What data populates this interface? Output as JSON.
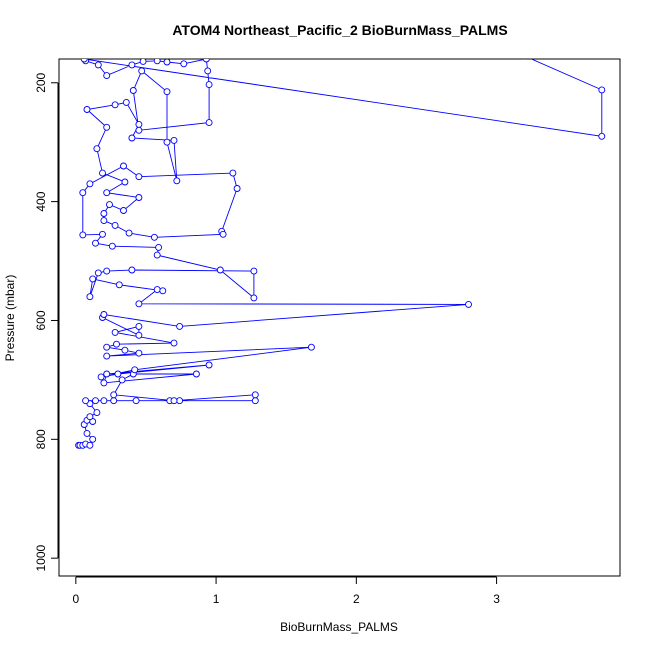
{
  "chart_data": {
    "type": "line",
    "title": "ATOM4 Northeast_Pacific_2 BioBurnMass_PALMS",
    "xlabel": "BioBurnMass_PALMS",
    "ylabel": "Pressure (mbar)",
    "xlim": [
      -0.12,
      3.88
    ],
    "ylim": [
      160,
      1030
    ],
    "y_reversed": true,
    "x_ticks": [
      0,
      1,
      2,
      3
    ],
    "y_ticks": [
      200,
      400,
      600,
      800,
      1000
    ],
    "grid": false,
    "color": "#0000ff",
    "marker": "open-circle",
    "series": [
      {
        "points": [
          [
            0.02,
            810
          ],
          [
            0.03,
            810
          ],
          [
            0.05,
            810
          ],
          [
            0.07,
            808
          ],
          [
            0.1,
            810
          ],
          [
            0.12,
            800
          ],
          [
            0.08,
            790
          ],
          [
            0.06,
            775
          ],
          [
            0.08,
            768
          ],
          [
            0.12,
            770
          ],
          [
            0.1,
            762
          ],
          [
            0.15,
            755
          ],
          [
            0.1,
            740
          ],
          [
            0.07,
            735
          ],
          [
            0.14,
            735
          ],
          [
            0.2,
            735
          ],
          [
            0.27,
            735
          ],
          [
            0.43,
            735
          ],
          [
            0.67,
            735
          ],
          [
            0.74,
            735
          ],
          [
            1.28,
            735
          ],
          [
            1.28,
            725
          ],
          [
            0.7,
            735
          ],
          [
            0.27,
            725
          ],
          [
            0.33,
            700
          ],
          [
            0.41,
            690
          ],
          [
            0.86,
            690
          ],
          [
            0.2,
            705
          ],
          [
            0.22,
            690
          ],
          [
            0.95,
            675
          ],
          [
            0.3,
            690
          ],
          [
            0.18,
            695
          ],
          [
            0.42,
            683
          ],
          [
            1.68,
            645
          ],
          [
            0.22,
            660
          ],
          [
            0.45,
            655
          ],
          [
            0.35,
            650
          ],
          [
            0.22,
            645
          ],
          [
            0.29,
            640
          ],
          [
            0.7,
            638
          ],
          [
            0.28,
            620
          ],
          [
            0.45,
            610
          ],
          [
            0.45,
            625
          ],
          [
            0.19,
            595
          ],
          [
            0.2,
            590
          ],
          [
            0.74,
            610
          ],
          [
            2.8,
            573
          ],
          [
            0.45,
            572
          ],
          [
            0.58,
            548
          ],
          [
            0.62,
            550
          ],
          [
            0.31,
            540
          ],
          [
            0.12,
            530
          ],
          [
            0.1,
            560
          ],
          [
            0.16,
            520
          ],
          [
            0.22,
            517
          ],
          [
            0.4,
            515
          ],
          [
            1.27,
            517
          ],
          [
            1.27,
            562
          ],
          [
            1.03,
            515
          ],
          [
            0.58,
            490
          ],
          [
            0.59,
            477
          ],
          [
            0.26,
            475
          ],
          [
            0.14,
            470
          ],
          [
            0.19,
            455
          ],
          [
            0.05,
            456
          ],
          [
            0.05,
            385
          ],
          [
            0.1,
            370
          ],
          [
            0.34,
            340
          ],
          [
            0.45,
            358
          ],
          [
            1.12,
            352
          ],
          [
            1.15,
            378
          ],
          [
            1.04,
            450
          ],
          [
            1.05,
            455
          ],
          [
            0.56,
            460
          ],
          [
            0.38,
            453
          ],
          [
            0.28,
            440
          ],
          [
            0.2,
            432
          ],
          [
            0.2,
            420
          ],
          [
            0.24,
            405
          ],
          [
            0.34,
            415
          ],
          [
            0.45,
            393
          ],
          [
            0.22,
            385
          ],
          [
            0.35,
            367
          ],
          [
            0.19,
            352
          ],
          [
            0.15,
            311
          ],
          [
            0.22,
            275
          ],
          [
            0.08,
            245
          ],
          [
            0.28,
            237
          ],
          [
            0.36,
            233
          ],
          [
            0.45,
            270
          ],
          [
            0.4,
            293
          ],
          [
            0.7,
            297
          ],
          [
            0.72,
            365
          ],
          [
            0.65,
            300
          ],
          [
            0.65,
            215
          ],
          [
            0.47,
            180
          ],
          [
            0.41,
            213
          ],
          [
            0.45,
            280
          ],
          [
            0.95,
            267
          ],
          [
            0.95,
            203
          ],
          [
            0.94,
            180
          ],
          [
            0.93,
            160
          ],
          [
            0.77,
            168
          ],
          [
            0.65,
            165
          ],
          [
            0.58,
            163
          ],
          [
            0.48,
            164
          ],
          [
            0.4,
            170
          ],
          [
            0.22,
            188
          ],
          [
            0.16,
            170
          ],
          [
            0.07,
            163
          ],
          [
            0.06,
            160
          ],
          [
            3.75,
            290
          ],
          [
            3.75,
            212
          ],
          [
            3.2,
            155
          ]
        ]
      }
    ]
  }
}
